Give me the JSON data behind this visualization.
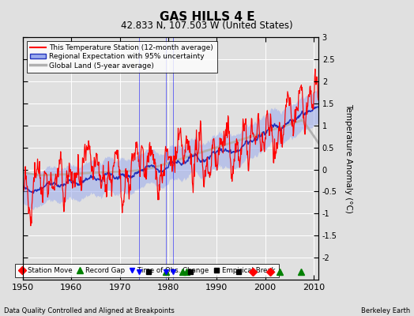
{
  "title": "GAS HILLS 4 E",
  "subtitle": "42.833 N, 107.503 W (United States)",
  "xlabel_bottom": "Data Quality Controlled and Aligned at Breakpoints",
  "xlabel_right": "Berkeley Earth",
  "ylabel_right": "Temperature Anomaly (°C)",
  "xlim": [
    1950,
    2011
  ],
  "ylim": [
    -2.5,
    3.0
  ],
  "yticks": [
    -2,
    -1.5,
    -1,
    -0.5,
    0,
    0.5,
    1,
    1.5,
    2,
    2.5,
    3
  ],
  "xticks": [
    1950,
    1960,
    1970,
    1980,
    1990,
    2000,
    2010
  ],
  "bg_color": "#e0e0e0",
  "station_moves": [
    1997.5,
    2001.0
  ],
  "record_gaps": [
    1979.5,
    1983.0,
    1983.8,
    2003.0,
    2007.5
  ],
  "obs_changes": [
    1974.0,
    1979.5,
    1981.0
  ],
  "emp_breaks": [
    1976.0,
    1984.5,
    1994.5
  ],
  "seed": 42
}
